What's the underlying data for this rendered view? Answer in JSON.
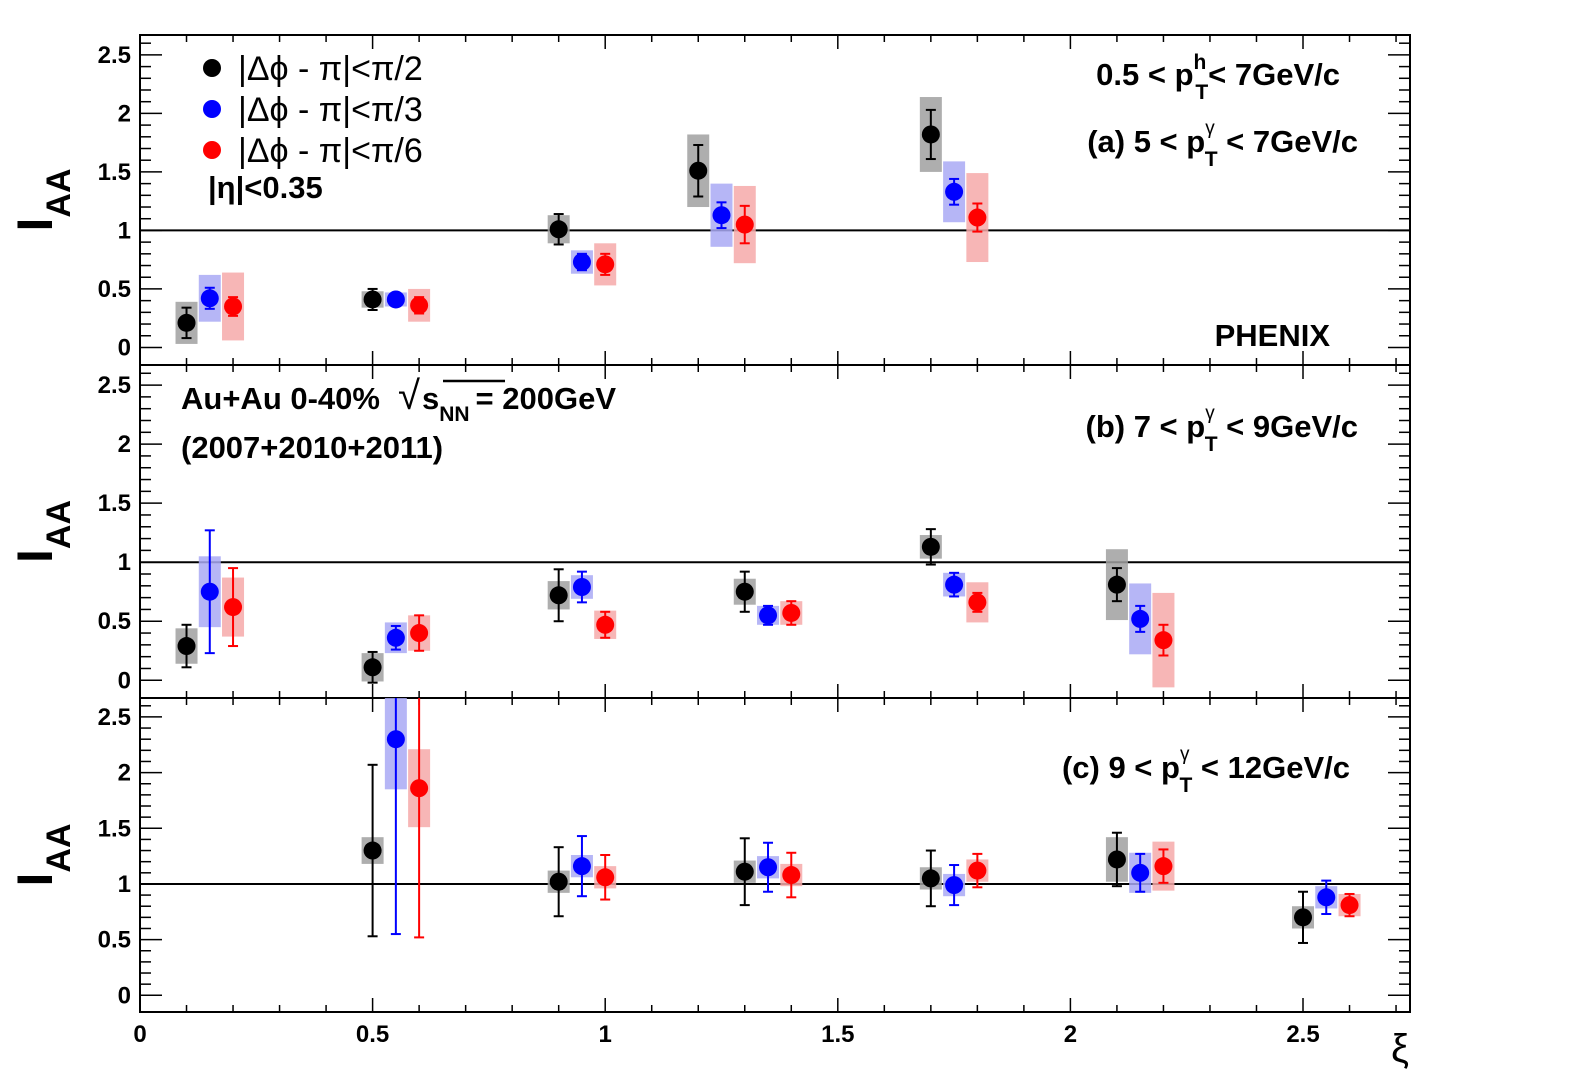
{
  "chart_data": {
    "type": "scatter",
    "experiment": "PHENIX",
    "system_label": "Au+Au 0-40%",
    "sqrt_s_prefix": "√",
    "sqrt_s_symbol": "s",
    "sqrt_s_sub": "NN",
    "sqrt_s_value": "= 200GeV",
    "dataset_label": "(2007+2010+2011)",
    "eta_cut": "|η|<0.35",
    "xlabel": "ξ",
    "ylabel_main": "I",
    "ylabel_sub": "AA",
    "xlim": [
      0,
      2.73
    ],
    "ylim": [
      -0.15,
      2.67
    ],
    "x_ticks": [
      0,
      0.5,
      1,
      1.5,
      2,
      2.5
    ],
    "x_tick_labels": [
      "0",
      "0.5",
      "1",
      "1.5",
      "2",
      "2.5"
    ],
    "y_ticks": [
      0,
      0.5,
      1,
      1.5,
      2,
      2.5
    ],
    "y_tick_labels": [
      "0",
      "0.5",
      "1",
      "1.5",
      "2",
      "2.5"
    ],
    "reference_line": 1,
    "legend": {
      "placement": "top-left",
      "entries": [
        {
          "label": "|Δϕ - π|<π/2",
          "color": "#000000"
        },
        {
          "label": "|Δϕ - π|<π/3",
          "color": "#0000ff"
        },
        {
          "label": "|Δϕ - π|<π/6",
          "color": "#ff0000"
        }
      ]
    },
    "hadron_cut": {
      "prefix": "0.5 < p",
      "sup": "h",
      "sub": "T",
      "suffix": "< 7GeV/c"
    },
    "series_style": [
      {
        "color": "#000000",
        "box_color": "#a0a0a0"
      },
      {
        "color": "#0000ff",
        "box_color": "#a9a9f5"
      },
      {
        "color": "#ff0000",
        "box_color": "#f6a9a9"
      }
    ],
    "panels": [
      {
        "id": "a",
        "label": {
          "prefix": "(a) 5 < p",
          "sup": "γ",
          "sub": "T",
          "suffix": " < 7GeV/c"
        },
        "series": [
          {
            "points": [
              {
                "x": 0.1,
                "y": 0.21,
                "stat": 0.13,
                "sys": 0.18
              },
              {
                "x": 0.5,
                "y": 0.41,
                "stat": 0.09,
                "sys": 0.07
              },
              {
                "x": 0.9,
                "y": 1.01,
                "stat": 0.13,
                "sys": 0.12
              },
              {
                "x": 1.2,
                "y": 1.51,
                "stat": 0.22,
                "sys": 0.31
              },
              {
                "x": 1.7,
                "y": 1.82,
                "stat": 0.21,
                "sys": 0.32
              }
            ]
          },
          {
            "points": [
              {
                "x": 0.15,
                "y": 0.42,
                "stat": 0.09,
                "sys": 0.2
              },
              {
                "x": 0.55,
                "y": 0.41,
                "stat": 0.04,
                "sys": 0.06
              },
              {
                "x": 0.95,
                "y": 0.73,
                "stat": 0.07,
                "sys": 0.1
              },
              {
                "x": 1.25,
                "y": 1.13,
                "stat": 0.11,
                "sys": 0.27
              },
              {
                "x": 1.75,
                "y": 1.33,
                "stat": 0.11,
                "sys": 0.26
              }
            ]
          },
          {
            "points": [
              {
                "x": 0.2,
                "y": 0.35,
                "stat": 0.08,
                "sys": 0.29
              },
              {
                "x": 0.6,
                "y": 0.36,
                "stat": 0.07,
                "sys": 0.14
              },
              {
                "x": 1.0,
                "y": 0.71,
                "stat": 0.09,
                "sys": 0.18
              },
              {
                "x": 1.3,
                "y": 1.05,
                "stat": 0.16,
                "sys": 0.33
              },
              {
                "x": 1.8,
                "y": 1.11,
                "stat": 0.12,
                "sys": 0.38
              }
            ]
          }
        ]
      },
      {
        "id": "b",
        "label": {
          "prefix": "(b) 7 < p",
          "sup": "γ",
          "sub": "T",
          "suffix": " < 9GeV/c"
        },
        "series": [
          {
            "points": [
              {
                "x": 0.1,
                "y": 0.29,
                "stat": 0.18,
                "sys": 0.15
              },
              {
                "x": 0.5,
                "y": 0.11,
                "stat": 0.13,
                "sys": 0.12
              },
              {
                "x": 0.9,
                "y": 0.72,
                "stat": 0.22,
                "sys": 0.12
              },
              {
                "x": 1.3,
                "y": 0.75,
                "stat": 0.17,
                "sys": 0.11
              },
              {
                "x": 1.7,
                "y": 1.13,
                "stat": 0.15,
                "sys": 0.1
              },
              {
                "x": 2.1,
                "y": 0.81,
                "stat": 0.14,
                "sys": 0.3
              }
            ]
          },
          {
            "points": [
              {
                "x": 0.15,
                "y": 0.75,
                "stat": 0.52,
                "sys": 0.3
              },
              {
                "x": 0.55,
                "y": 0.36,
                "stat": 0.1,
                "sys": 0.13
              },
              {
                "x": 0.95,
                "y": 0.79,
                "stat": 0.13,
                "sys": 0.1
              },
              {
                "x": 1.35,
                "y": 0.55,
                "stat": 0.08,
                "sys": 0.08
              },
              {
                "x": 1.75,
                "y": 0.81,
                "stat": 0.1,
                "sys": 0.1
              },
              {
                "x": 2.15,
                "y": 0.52,
                "stat": 0.11,
                "sys": 0.3
              }
            ]
          },
          {
            "points": [
              {
                "x": 0.2,
                "y": 0.62,
                "stat": 0.33,
                "sys": 0.25
              },
              {
                "x": 0.6,
                "y": 0.4,
                "stat": 0.15,
                "sys": 0.15
              },
              {
                "x": 1.0,
                "y": 0.47,
                "stat": 0.11,
                "sys": 0.12
              },
              {
                "x": 1.4,
                "y": 0.57,
                "stat": 0.1,
                "sys": 0.1
              },
              {
                "x": 1.8,
                "y": 0.66,
                "stat": 0.08,
                "sys": 0.17
              },
              {
                "x": 2.2,
                "y": 0.34,
                "stat": 0.13,
                "sys": 0.4
              }
            ]
          }
        ]
      },
      {
        "id": "c",
        "label": {
          "prefix": "(c) 9 < p",
          "sup": "γ",
          "sub": "T",
          "suffix": " < 12GeV/c"
        },
        "series": [
          {
            "points": [
              {
                "x": 0.5,
                "y": 1.3,
                "stat": 0.77,
                "sys": 0.12
              },
              {
                "x": 0.9,
                "y": 1.02,
                "stat": 0.31,
                "sys": 0.1
              },
              {
                "x": 1.3,
                "y": 1.11,
                "stat": 0.3,
                "sys": 0.1
              },
              {
                "x": 1.7,
                "y": 1.05,
                "stat": 0.25,
                "sys": 0.1
              },
              {
                "x": 2.1,
                "y": 1.22,
                "stat": 0.24,
                "sys": 0.2
              },
              {
                "x": 2.5,
                "y": 0.7,
                "stat": 0.23,
                "sys": 0.1
              }
            ]
          },
          {
            "points": [
              {
                "x": 0.55,
                "y": 2.3,
                "stat": 1.75,
                "sys": 0.45
              },
              {
                "x": 0.95,
                "y": 1.16,
                "stat": 0.27,
                "sys": 0.1
              },
              {
                "x": 1.35,
                "y": 1.15,
                "stat": 0.22,
                "sys": 0.1
              },
              {
                "x": 1.75,
                "y": 0.99,
                "stat": 0.18,
                "sys": 0.1
              },
              {
                "x": 2.15,
                "y": 1.1,
                "stat": 0.17,
                "sys": 0.18
              },
              {
                "x": 2.55,
                "y": 0.88,
                "stat": 0.15,
                "sys": 0.1
              }
            ]
          },
          {
            "points": [
              {
                "x": 0.6,
                "y": 1.86,
                "stat": 1.34,
                "sys": 0.35
              },
              {
                "x": 1.0,
                "y": 1.06,
                "stat": 0.2,
                "sys": 0.1
              },
              {
                "x": 1.4,
                "y": 1.08,
                "stat": 0.2,
                "sys": 0.1
              },
              {
                "x": 1.8,
                "y": 1.12,
                "stat": 0.15,
                "sys": 0.1
              },
              {
                "x": 2.2,
                "y": 1.16,
                "stat": 0.15,
                "sys": 0.22
              },
              {
                "x": 2.6,
                "y": 0.81,
                "stat": 0.1,
                "sys": 0.1
              }
            ]
          }
        ]
      }
    ]
  }
}
